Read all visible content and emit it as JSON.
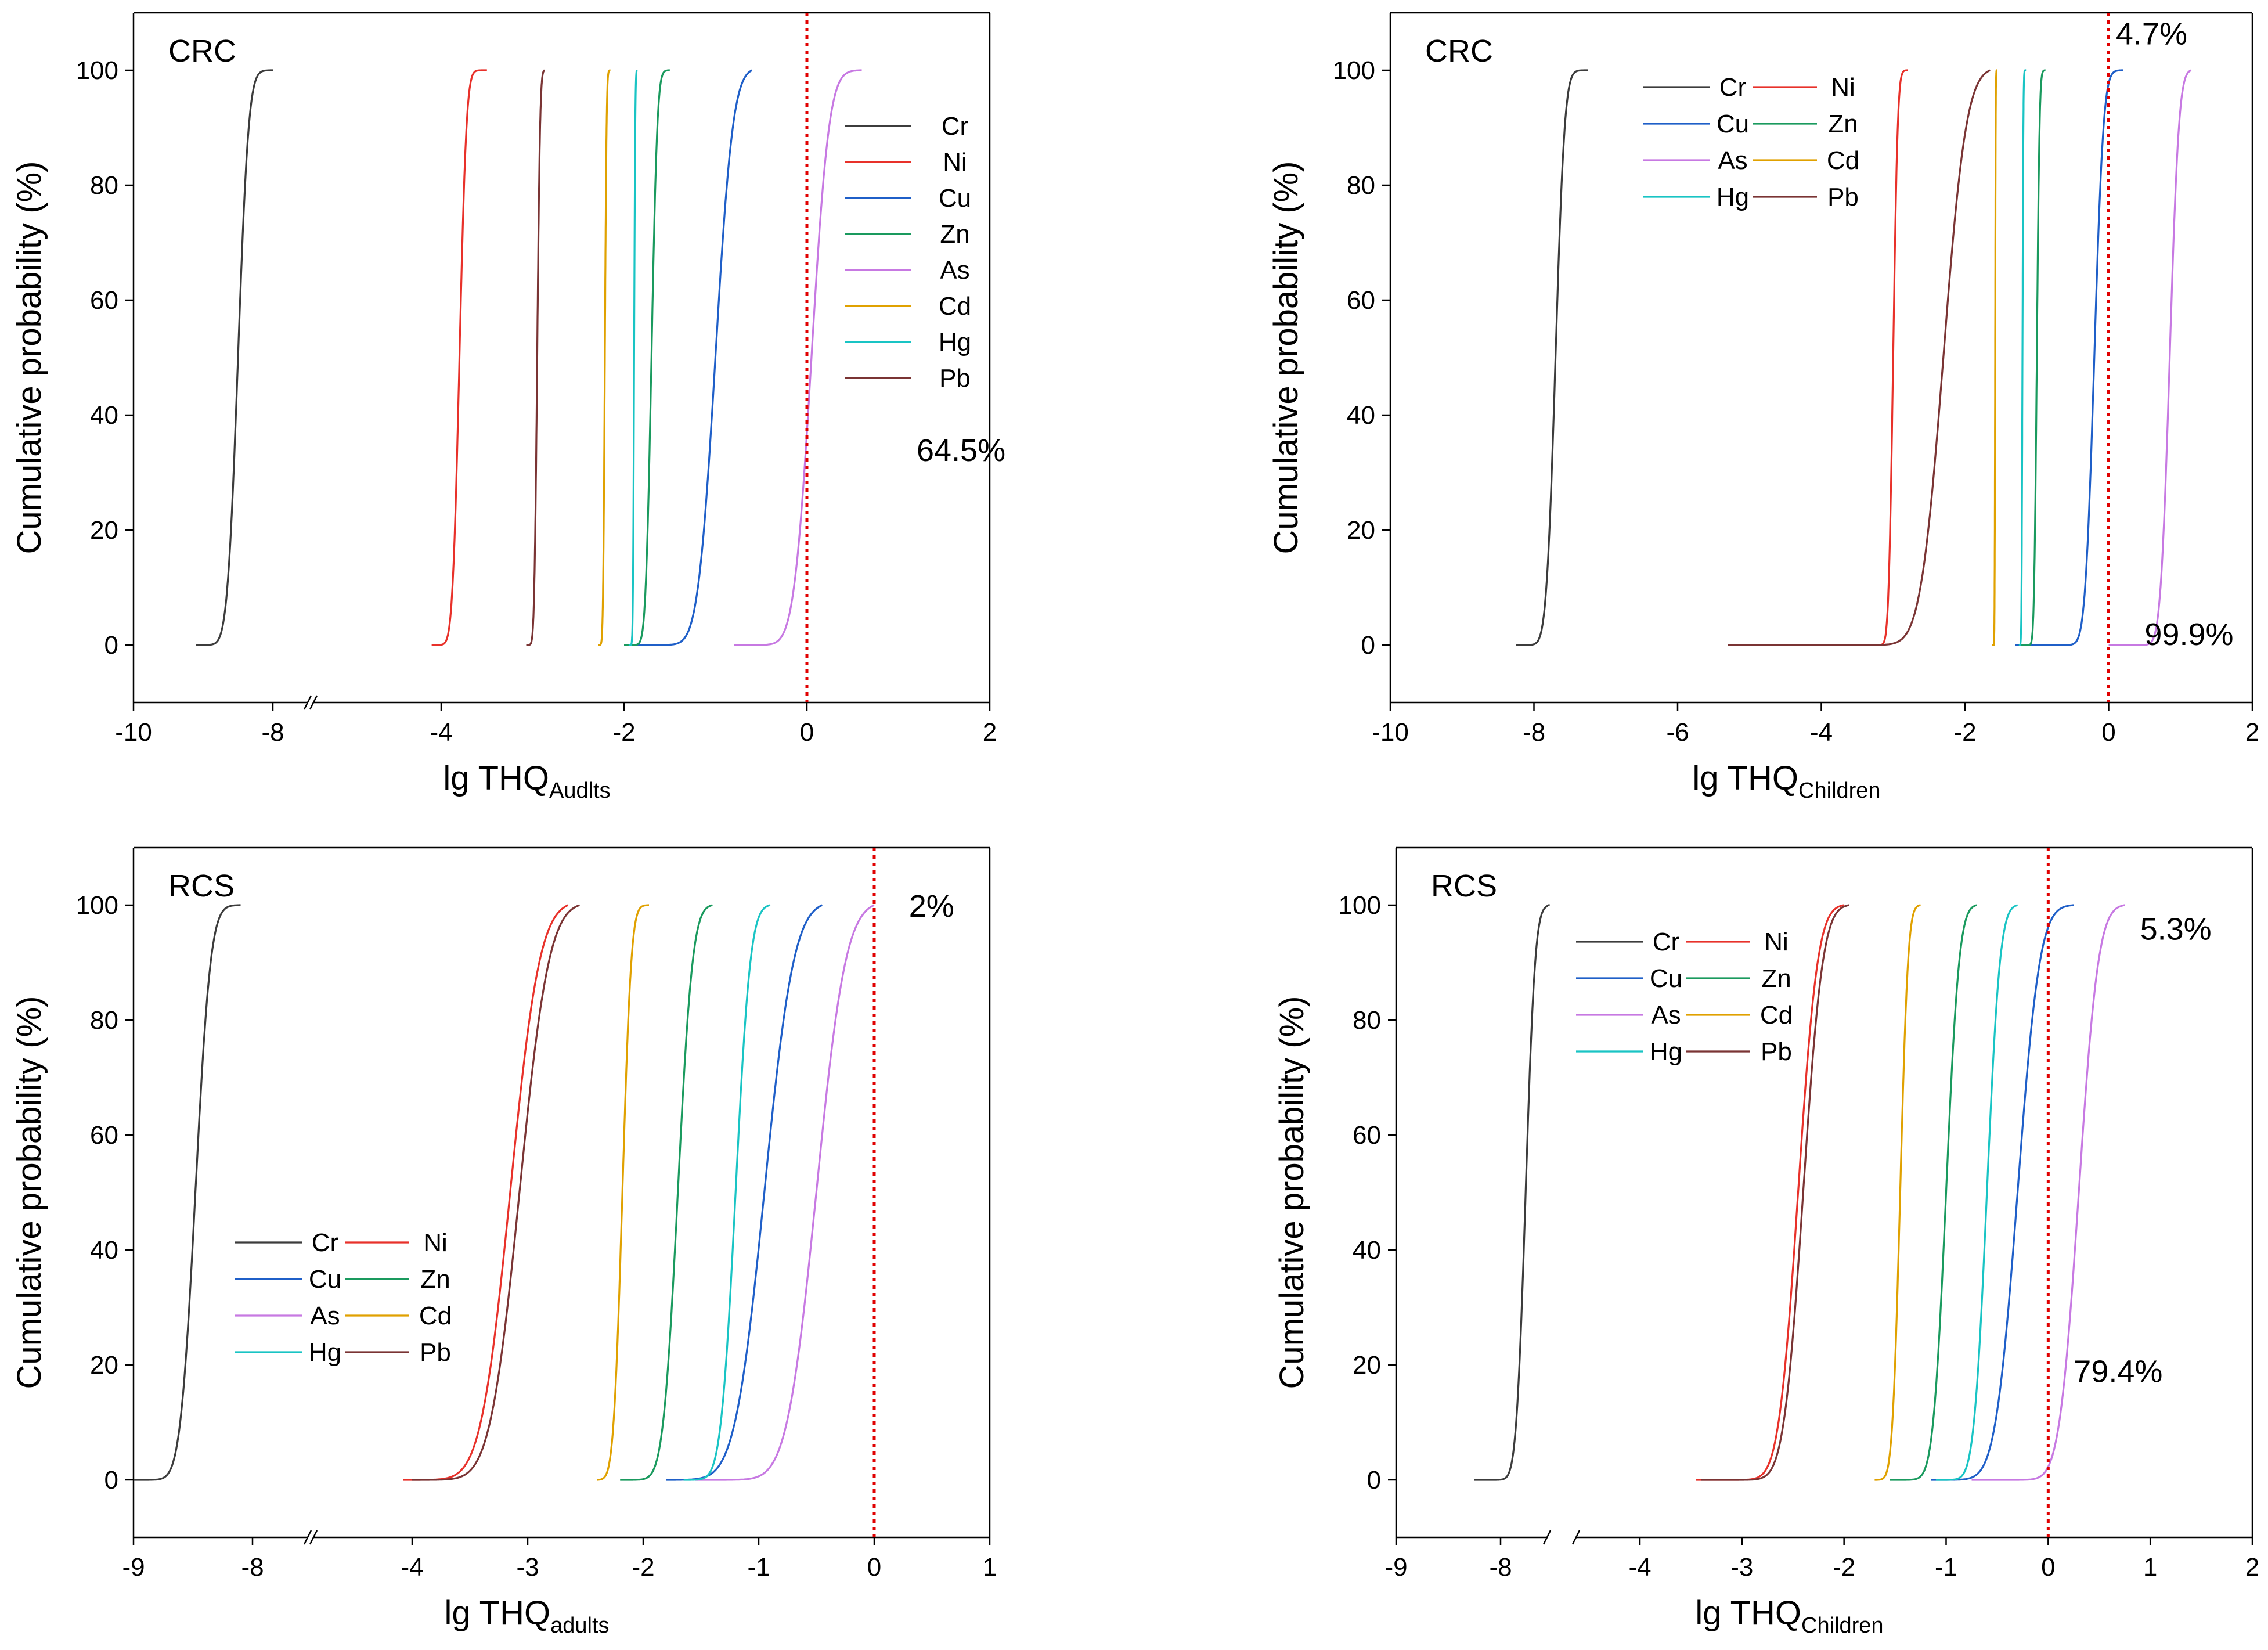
{
  "colors": {
    "Cr": "#3c3c3c",
    "Ni": "#e8312a",
    "Cu": "#1f5fc8",
    "Zn": "#1a9a5e",
    "As": "#c779e2",
    "Cd": "#e0a100",
    "Hg": "#19c4c4",
    "Pb": "#7a3434",
    "threshold": "#e00000"
  },
  "chart_data": [
    {
      "type": "line",
      "panel_label": "CRC",
      "xlabel_main": "lg THQ",
      "xlabel_sub": "Audlts",
      "ylabel": "Cumulative probability (%)",
      "x_ticks": [
        "-10",
        "-8",
        "-4",
        "-2",
        "0",
        "2"
      ],
      "y_ticks": [
        "0",
        "20",
        "40",
        "60",
        "80",
        "100"
      ],
      "x_breaks": [
        [
          -10,
          -8
        ],
        [
          -7.5,
          -4
        ],
        [
          -4,
          2
        ]
      ],
      "ylim": [
        -10,
        110
      ],
      "axis_break": true,
      "legend_layout": "vertical",
      "legend_placement": "top-right",
      "threshold_x": 0,
      "annotations": [
        {
          "text": "64.5%",
          "x": 1.2,
          "y": 32
        }
      ],
      "series": [
        {
          "name": "Cr",
          "median": -8.5,
          "spread": 0.12,
          "min": -9.1,
          "max": -8.0
        },
        {
          "name": "Ni",
          "median": -3.8,
          "spread": 0.06,
          "min": -4.25,
          "max": -3.5
        },
        {
          "name": "Cu",
          "median": -1.0,
          "spread": 0.15,
          "min": -1.95,
          "max": -0.6
        },
        {
          "name": "Zn",
          "median": -1.7,
          "spread": 0.05,
          "min": -2.0,
          "max": -1.5
        },
        {
          "name": "As",
          "median": 0.05,
          "spread": 0.15,
          "min": -0.8,
          "max": 0.6
        },
        {
          "name": "Cd",
          "median": -2.21,
          "spread": 0.015,
          "min": -2.28,
          "max": -2.15
        },
        {
          "name": "Hg",
          "median": -1.89,
          "spread": 0.01,
          "min": -1.95,
          "max": -1.86
        },
        {
          "name": "Pb",
          "median": -2.95,
          "spread": 0.025,
          "min": -3.07,
          "max": -2.87
        }
      ]
    },
    {
      "type": "line",
      "panel_label": "CRC",
      "xlabel_main": "lg THQ",
      "xlabel_sub": "Children",
      "ylabel": "Cumulative probability (%)",
      "x_ticks": [
        "-10",
        "-8",
        "-6",
        "-4",
        "-2",
        "0",
        "2"
      ],
      "y_ticks": [
        "0",
        "20",
        "40",
        "60",
        "80",
        "100"
      ],
      "x_breaks": [
        [
          -10,
          2
        ]
      ],
      "ylim": [
        -10,
        110
      ],
      "axis_break": false,
      "legend_layout": "two-column",
      "legend_placement": "top-left",
      "threshold_x": 0,
      "annotations": [
        {
          "text": "4.7%",
          "x": 0.1,
          "y": 104.5
        },
        {
          "text": "99.9%",
          "x": 0.5,
          "y": 0
        }
      ],
      "series": [
        {
          "name": "Cr",
          "median": -7.7,
          "spread": 0.1,
          "min": -8.25,
          "max": -7.25
        },
        {
          "name": "Ni",
          "median": -3.0,
          "spread": 0.05,
          "min": -3.35,
          "max": -2.8
        },
        {
          "name": "Cu",
          "median": -0.2,
          "spread": 0.1,
          "min": -1.3,
          "max": 0.2
        },
        {
          "name": "Zn",
          "median": -1.0,
          "spread": 0.03,
          "min": -1.25,
          "max": -0.88
        },
        {
          "name": "As",
          "median": 0.85,
          "spread": 0.1,
          "min": 0.0,
          "max": 1.15
        },
        {
          "name": "Cd",
          "median": -1.58,
          "spread": 0.006,
          "min": -1.62,
          "max": -1.55
        },
        {
          "name": "Hg",
          "median": -1.2,
          "spread": 0.01,
          "min": -1.25,
          "max": -1.15
        },
        {
          "name": "Pb",
          "median": -2.3,
          "spread": 0.25,
          "min": -5.3,
          "max": -1.65
        }
      ]
    },
    {
      "type": "line",
      "panel_label": "RCS",
      "xlabel_main": "lg THQ",
      "xlabel_sub": "adults",
      "ylabel": "Cumulative probability (%)",
      "x_ticks": [
        "-9",
        "-8",
        "-4",
        "-3",
        "-2",
        "-1",
        "0",
        "1"
      ],
      "y_ticks": [
        "0",
        "20",
        "40",
        "60",
        "80",
        "100"
      ],
      "x_breaks": [
        [
          -9,
          -8
        ],
        [
          -7.5,
          -4
        ],
        [
          -4,
          1
        ]
      ],
      "ylim": [
        -10,
        110
      ],
      "axis_break": true,
      "legend_layout": "two-column",
      "legend_placement": "bottom-left",
      "threshold_x": 0,
      "annotations": [
        {
          "text": "2%",
          "x": 0.3,
          "y": 98
        }
      ],
      "series": [
        {
          "name": "Cr",
          "median": -8.48,
          "spread": 0.1,
          "min": -9.0,
          "max": -8.1
        },
        {
          "name": "Ni",
          "median": -3.15,
          "spread": 0.2,
          "min": -4.3,
          "max": -2.65
        },
        {
          "name": "Cu",
          "median": -0.95,
          "spread": 0.2,
          "min": -1.8,
          "max": -0.45
        },
        {
          "name": "Zn",
          "median": -1.7,
          "spread": 0.1,
          "min": -2.2,
          "max": -1.4
        },
        {
          "name": "As",
          "median": -0.5,
          "spread": 0.2,
          "min": -1.55,
          "max": 0.0
        },
        {
          "name": "Cd",
          "median": -2.18,
          "spread": 0.06,
          "min": -2.4,
          "max": -1.95
        },
        {
          "name": "Hg",
          "median": -1.2,
          "spread": 0.1,
          "min": -1.65,
          "max": -0.9
        },
        {
          "name": "Pb",
          "median": -3.07,
          "spread": 0.2,
          "min": -4.0,
          "max": -2.55
        }
      ]
    },
    {
      "type": "line",
      "panel_label": "RCS",
      "xlabel_main": "lg THQ",
      "xlabel_sub": "Children",
      "ylabel": "Cumulative probability (%)",
      "x_ticks": [
        "-9",
        "-8",
        "-4",
        "-3",
        "-2",
        "-1",
        "0",
        "1",
        "2"
      ],
      "y_ticks": [
        "0",
        "20",
        "40",
        "60",
        "80",
        "100"
      ],
      "x_breaks": [
        [
          -9,
          -7.5
        ],
        [
          -7.5,
          -4
        ],
        [
          -4,
          2
        ]
      ],
      "ylim": [
        -10,
        110
      ],
      "axis_break": true,
      "legend_layout": "two-column",
      "legend_placement": "top-left",
      "threshold_x": 0,
      "annotations": [
        {
          "text": "5.3%",
          "x": 0.9,
          "y": 94
        },
        {
          "text": "79.4%",
          "x": 0.25,
          "y": 17
        }
      ],
      "series": [
        {
          "name": "Cr",
          "median": -7.73,
          "spread": 0.08,
          "min": -8.25,
          "max": -7.4
        },
        {
          "name": "Ni",
          "median": -2.45,
          "spread": 0.15,
          "min": -3.45,
          "max": -2.0
        },
        {
          "name": "Cu",
          "median": -0.3,
          "spread": 0.17,
          "min": -1.15,
          "max": 0.25
        },
        {
          "name": "Zn",
          "median": -1.0,
          "spread": 0.1,
          "min": -1.55,
          "max": -0.7
        },
        {
          "name": "As",
          "median": 0.3,
          "spread": 0.15,
          "min": -0.75,
          "max": 0.75
        },
        {
          "name": "Cd",
          "median": -1.45,
          "spread": 0.06,
          "min": -1.7,
          "max": -1.25
        },
        {
          "name": "Hg",
          "median": -0.6,
          "spread": 0.1,
          "min": -1.1,
          "max": -0.3
        },
        {
          "name": "Pb",
          "median": -2.4,
          "spread": 0.15,
          "min": -3.4,
          "max": -1.95
        }
      ]
    }
  ]
}
